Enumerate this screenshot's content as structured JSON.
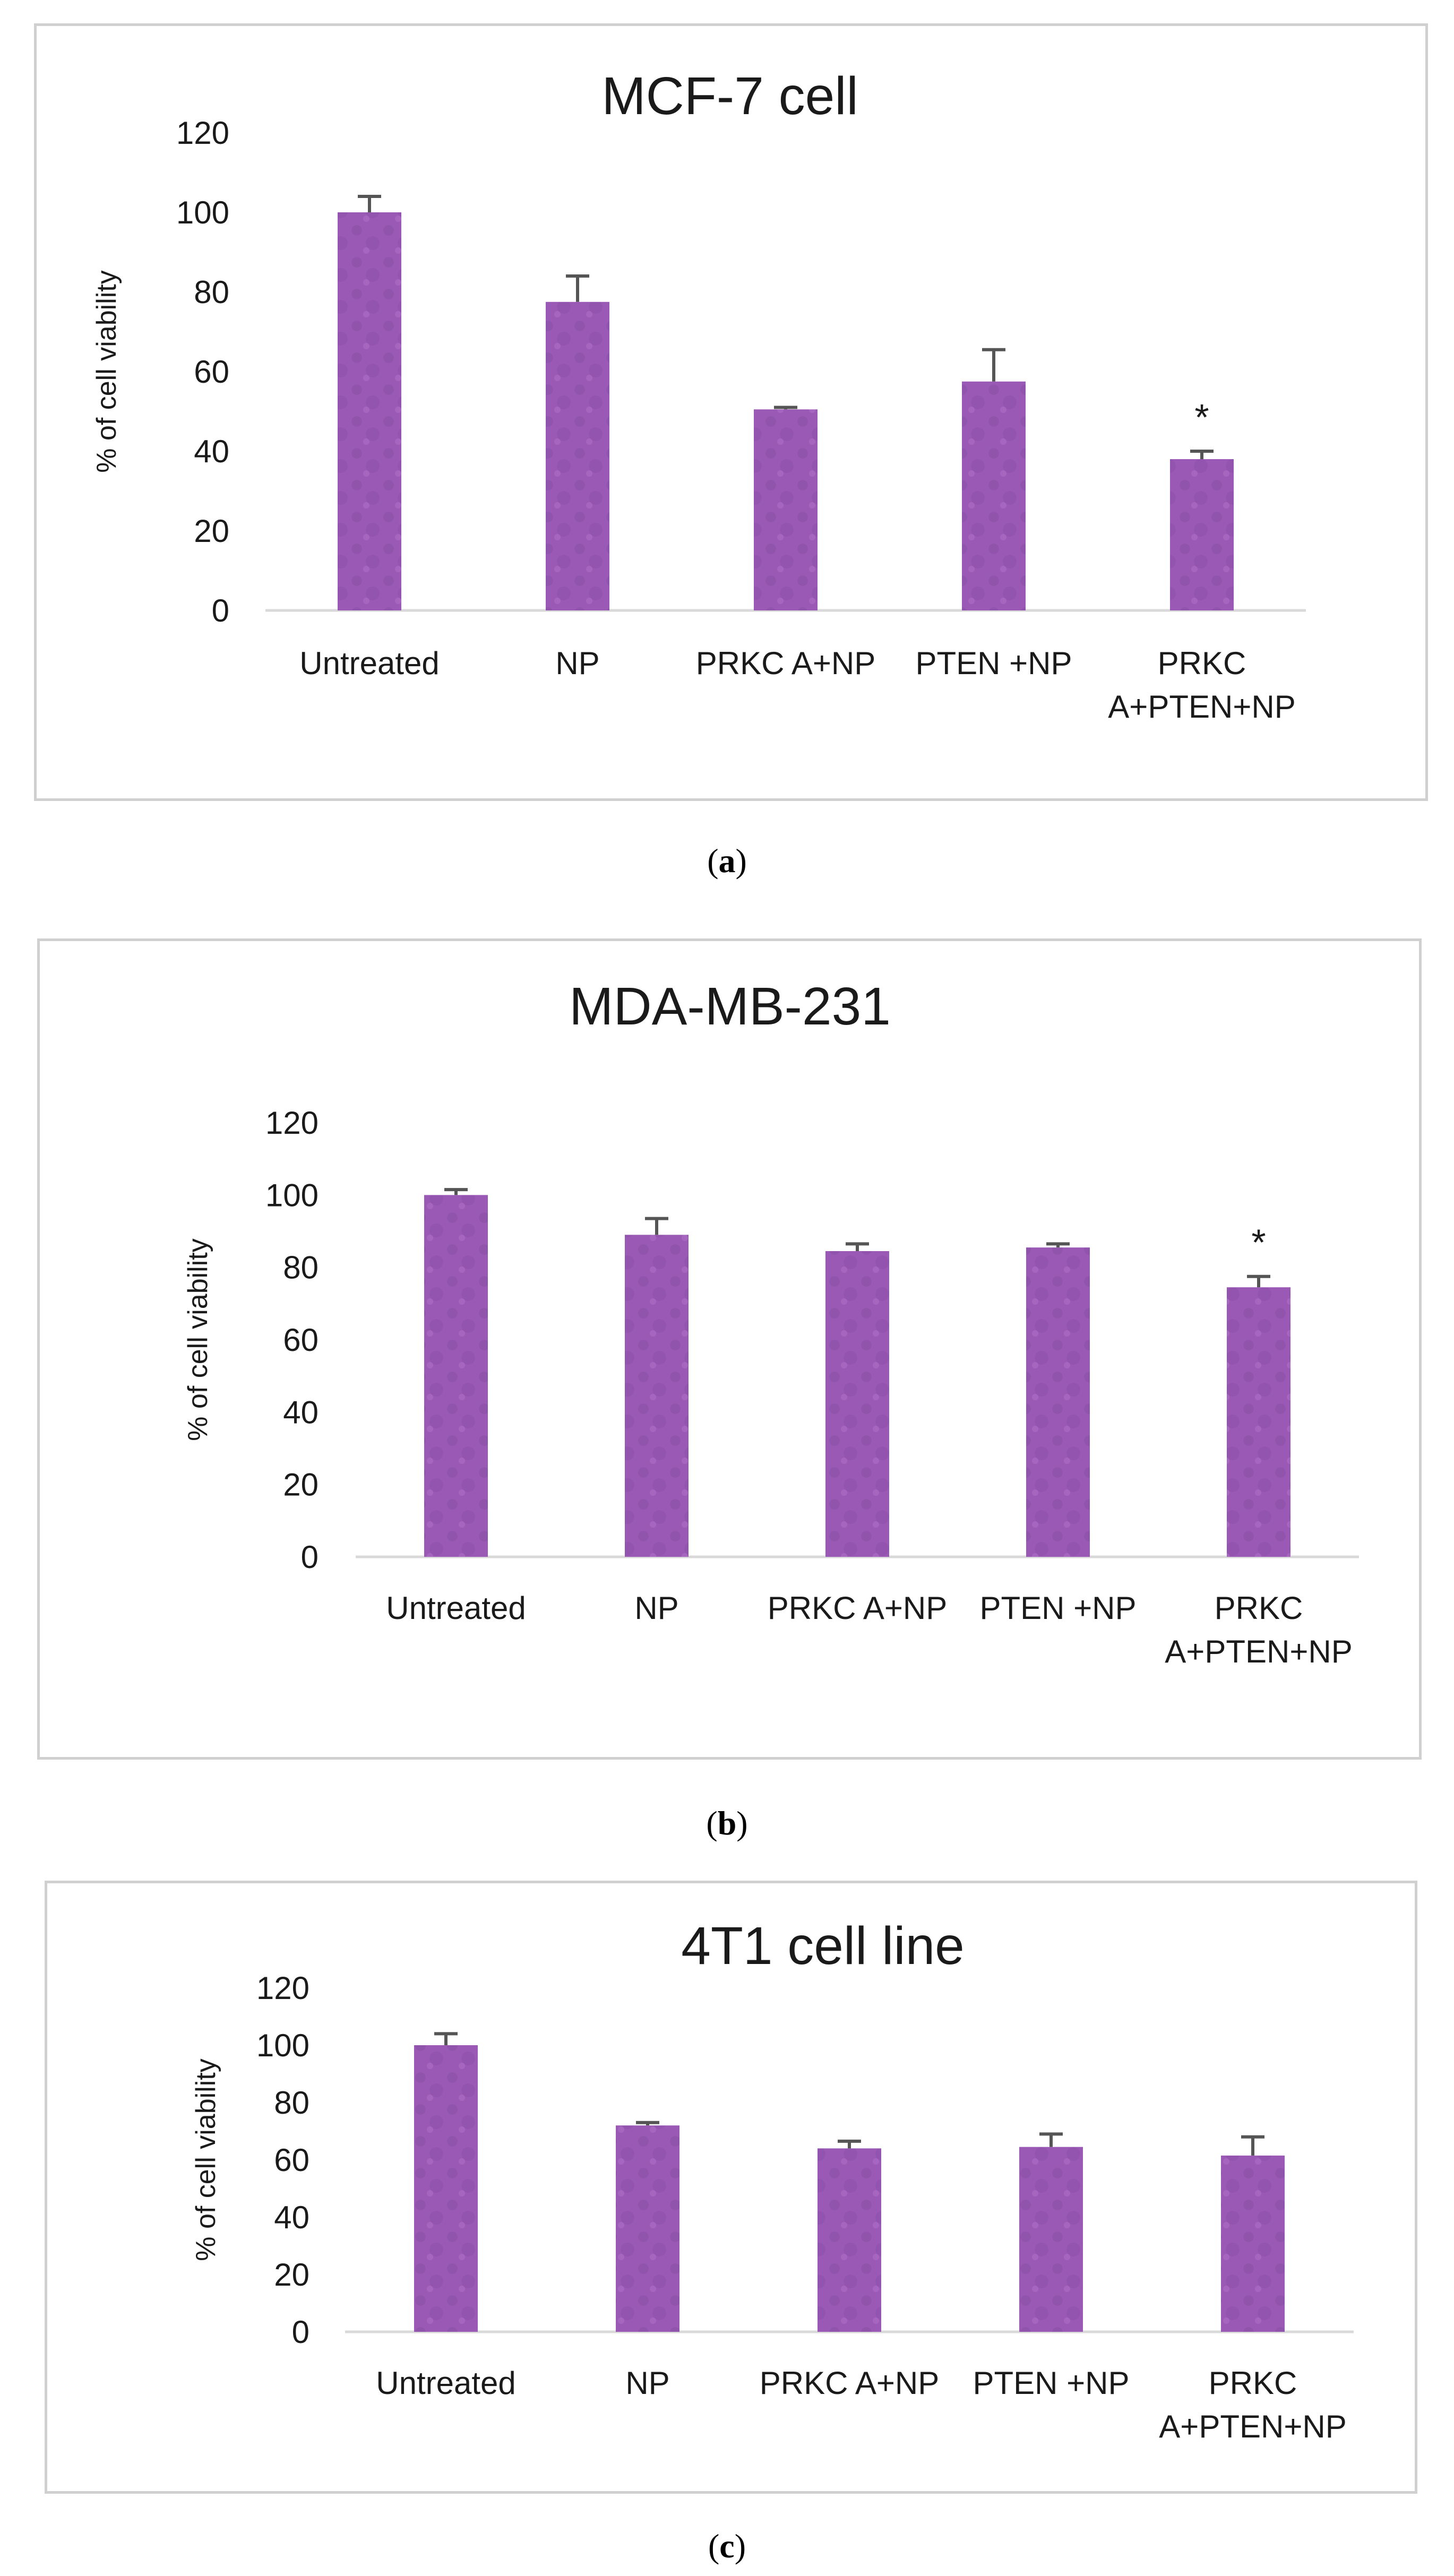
{
  "colors": {
    "bar": "#9b59b6",
    "bar_dark": "#7d4a9b",
    "error_bar": "#555555",
    "axis": "#d9d9d9",
    "frame": "#d0d0d0"
  },
  "panels": [
    {
      "caption_prefix": "(",
      "caption_letter": "a",
      "caption_suffix": ")"
    },
    {
      "caption_prefix": "(",
      "caption_letter": "b",
      "caption_suffix": ")"
    },
    {
      "caption_prefix": "(",
      "caption_letter": "c",
      "caption_suffix": ")"
    }
  ],
  "chart_data": [
    {
      "type": "bar",
      "title": "MCF-7 cell",
      "ylabel": "% of cell viability",
      "xlabel": "",
      "ylim": [
        0,
        120
      ],
      "yticks": [
        0,
        20,
        40,
        60,
        80,
        100,
        120
      ],
      "categories": [
        [
          "Untreated"
        ],
        [
          "NP"
        ],
        [
          "PRKC A+NP"
        ],
        [
          "PTEN +NP"
        ],
        [
          "PRKC",
          "A+PTEN+NP"
        ]
      ],
      "values": [
        100,
        77.5,
        50.5,
        57.5,
        38
      ],
      "errors": [
        4,
        6.5,
        0.5,
        8,
        2
      ],
      "annotations": [
        "",
        "",
        "",
        "",
        "*"
      ],
      "grid": false
    },
    {
      "type": "bar",
      "title": "MDA-MB-231",
      "ylabel": "% of cell viability",
      "xlabel": "",
      "ylim": [
        0,
        120
      ],
      "yticks": [
        0,
        20,
        40,
        60,
        80,
        100,
        120
      ],
      "categories": [
        [
          "Untreated"
        ],
        [
          "NP"
        ],
        [
          "PRKC A+NP"
        ],
        [
          "PTEN +NP"
        ],
        [
          "PRKC",
          "A+PTEN+NP"
        ]
      ],
      "values": [
        100,
        89,
        84.5,
        85.5,
        74.5
      ],
      "errors": [
        1.5,
        4.5,
        2,
        1,
        3
      ],
      "annotations": [
        "",
        "",
        "",
        "",
        "*"
      ],
      "grid": false
    },
    {
      "type": "bar",
      "title": "4T1 cell line",
      "ylabel": "% of cell viability",
      "xlabel": "",
      "ylim": [
        0,
        120
      ],
      "yticks": [
        0,
        20,
        40,
        60,
        80,
        100,
        120
      ],
      "categories": [
        [
          "Untreated"
        ],
        [
          "NP"
        ],
        [
          "PRKC A+NP"
        ],
        [
          "PTEN +NP"
        ],
        [
          "PRKC",
          "A+PTEN+NP"
        ]
      ],
      "values": [
        100,
        72,
        64,
        64.5,
        61.5
      ],
      "errors": [
        4,
        1,
        2.5,
        4.5,
        6.5
      ],
      "annotations": [
        "",
        "",
        "",
        "",
        ""
      ],
      "grid": false
    }
  ]
}
